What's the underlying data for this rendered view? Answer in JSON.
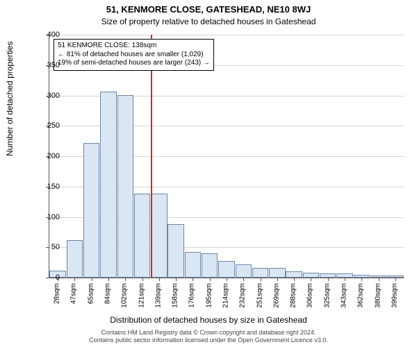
{
  "title": "51, KENMORE CLOSE, GATESHEAD, NE10 8WJ",
  "subtitle": "Size of property relative to detached houses in Gateshead",
  "ylabel": "Number of detached properties",
  "xlabel": "Distribution of detached houses by size in Gateshead",
  "footnote1": "Contains HM Land Registry data © Crown copyright and database right 2024.",
  "footnote2": "Contains public sector information licensed under the Open Government Licence v3.0.",
  "chart": {
    "type": "bar",
    "ylim": [
      0,
      400
    ],
    "ytick_step": 50,
    "categories": [
      "28sqm",
      "47sqm",
      "65sqm",
      "84sqm",
      "102sqm",
      "121sqm",
      "139sqm",
      "158sqm",
      "176sqm",
      "195sqm",
      "214sqm",
      "232sqm",
      "251sqm",
      "269sqm",
      "288sqm",
      "306sqm",
      "325sqm",
      "343sqm",
      "362sqm",
      "380sqm",
      "399sqm"
    ],
    "values": [
      12,
      62,
      222,
      306,
      301,
      138,
      138,
      88,
      42,
      40,
      28,
      22,
      16,
      16,
      10,
      8,
      7,
      7,
      5,
      4,
      4
    ],
    "bar_fill": "#dbe6f4",
    "bar_border": "#6b86a6",
    "grid_color": "#d6d6d6",
    "background_color": "#ffffff",
    "marker_line_color": "#e02020",
    "marker_index": 6,
    "bar_width_ratio": 0.96
  },
  "annotation": {
    "line1": "51 KENMORE CLOSE: 138sqm",
    "line2": "← 81% of detached houses are smaller (1,029)",
    "line3": "19% of semi-detached houses are larger (243) →"
  }
}
